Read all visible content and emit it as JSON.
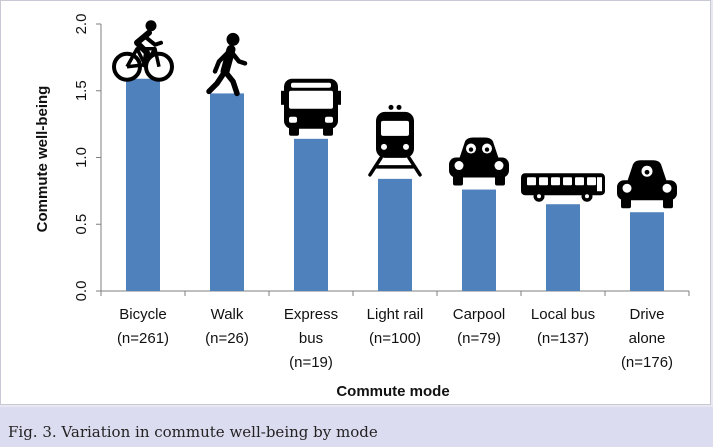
{
  "caption": "Fig. 3. Variation in commute well-being by mode",
  "colors": {
    "bar": "#4f81bd",
    "icon": "#000000",
    "caption_bg": "#dcdcf0"
  },
  "chart_data": {
    "type": "bar",
    "title": "",
    "xlabel": "Commute mode",
    "ylabel": "Commute well-being",
    "ylim": [
      0,
      2.0
    ],
    "yticks": [
      "0.0",
      "0.5",
      "1.0",
      "1.5",
      "2.0"
    ],
    "grid": false,
    "categories": [
      {
        "lines": [
          "Bicycle",
          "(n=261)"
        ],
        "value": 1.59,
        "icon": "bicycle-icon"
      },
      {
        "lines": [
          "Walk",
          "(n=26)"
        ],
        "value": 1.48,
        "icon": "walking-person-icon"
      },
      {
        "lines": [
          "Express",
          "bus",
          "(n=19)"
        ],
        "value": 1.14,
        "icon": "express-bus-icon"
      },
      {
        "lines": [
          "Light rail",
          "(n=100)"
        ],
        "value": 0.84,
        "icon": "light-rail-train-icon"
      },
      {
        "lines": [
          "Carpool",
          "(n=79)"
        ],
        "value": 0.76,
        "icon": "carpool-car-icon"
      },
      {
        "lines": [
          "Local bus",
          "(n=137)"
        ],
        "value": 0.65,
        "icon": "local-bus-icon"
      },
      {
        "lines": [
          "Drive",
          "alone",
          "(n=176)"
        ],
        "value": 0.59,
        "icon": "drive-alone-car-icon"
      }
    ]
  }
}
